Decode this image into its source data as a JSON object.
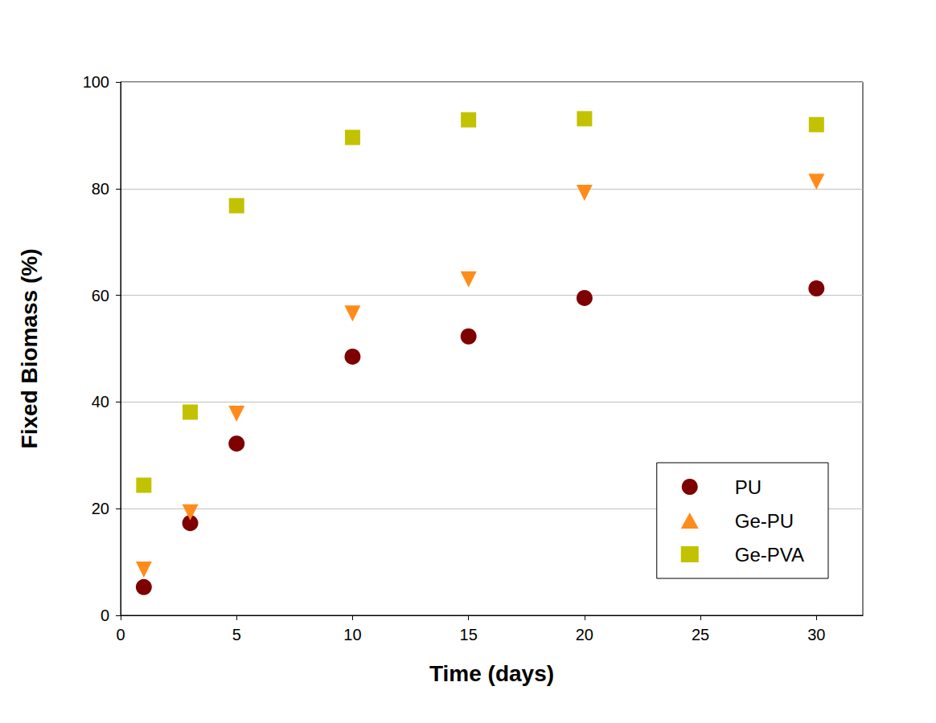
{
  "chart_data": {
    "type": "scatter",
    "x_label": "Time (days)",
    "y_label": "Fixed Biomass (%)",
    "xlim": [
      0,
      32
    ],
    "xticks": [
      0,
      5,
      10,
      15,
      20,
      25,
      30
    ],
    "ylim": [
      0,
      100
    ],
    "yticks": [
      0,
      20,
      40,
      60,
      80,
      100
    ],
    "grid": true,
    "legend": "lower right",
    "series": [
      {
        "name": "PU",
        "color": "#7f0000",
        "marker": "circle",
        "x": [
          1,
          3,
          5,
          10,
          15,
          20,
          30
        ],
        "values": [
          5.3,
          17.3,
          32.2,
          48.5,
          52.3,
          59.5,
          61.3
        ]
      },
      {
        "name": "Ge-PU",
        "color": "#ff8c1a",
        "marker": "triangle_down",
        "x": [
          1,
          3,
          5,
          10,
          15,
          20,
          30
        ],
        "values": [
          8.6,
          19.3,
          37.8,
          56.6,
          63.0,
          79.2,
          81.3
        ]
      },
      {
        "name": "Ge-PVA",
        "color": "#c2c200",
        "marker": "square",
        "x": [
          1,
          3,
          5,
          10,
          15,
          20,
          30
        ],
        "values": [
          24.4,
          38.1,
          76.8,
          89.6,
          92.9,
          93.1,
          92.0
        ]
      }
    ]
  }
}
